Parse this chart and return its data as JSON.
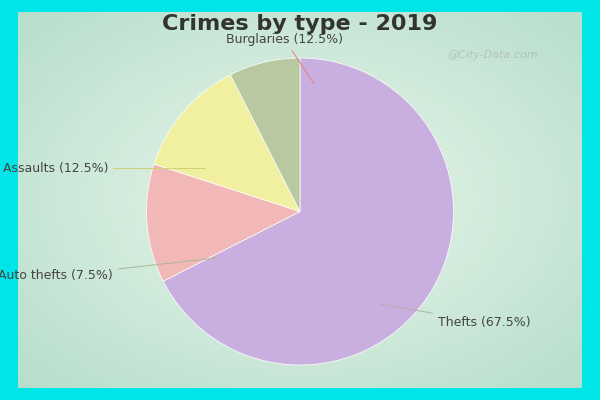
{
  "title": "Crimes by type - 2019",
  "labels": [
    "Thefts",
    "Burglaries",
    "Assaults",
    "Auto thefts"
  ],
  "values": [
    67.5,
    12.5,
    12.5,
    7.5
  ],
  "colors": [
    "#c9aee0",
    "#f2b8b8",
    "#f0f0a0",
    "#b8c8a0"
  ],
  "label_texts": [
    "Thefts (67.5%)",
    "Burglaries (12.5%)",
    "Assaults (12.5%)",
    "Auto thefts (7.5%)"
  ],
  "startangle": 90,
  "fig_bg": "#00e5e8",
  "inner_bg": "#d8eedc",
  "title_fontsize": 16,
  "label_fontsize": 9,
  "watermark": "@City-Data.com",
  "title_color": "#333333"
}
